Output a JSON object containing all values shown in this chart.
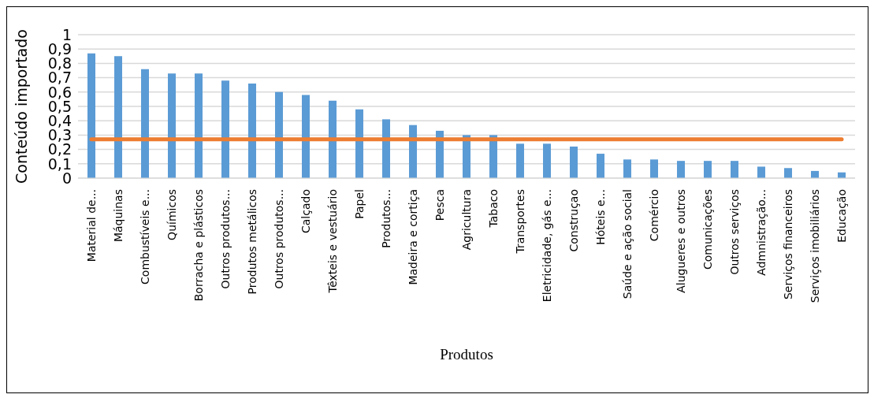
{
  "chart_data": {
    "type": "bar",
    "xlabel": "Produtos",
    "ylabel": "Conteúdo importado",
    "categories": [
      "Material de...",
      "Máquinas",
      "Combustíveis e...",
      "Químicos",
      "Borracha e plásticos",
      "Outros produtos...",
      "Produtos metálicos",
      "Outros produtos...",
      "Calçado",
      "Têxteis e vestuário",
      "Papel",
      "Produtos...",
      "Madeira e cortiça",
      "Pesca",
      "Agricultura",
      "Tabaco",
      "Transportes",
      "Eletricidade, gás e...",
      "Construçao",
      "Hóteis e...",
      "Saúde e ação social",
      "Comércio",
      "Alugueres e outros",
      "Comunicações",
      "Outros serviços",
      "Admnistração...",
      "Serviços financeiros",
      "Serviços imobiliários",
      "Educação"
    ],
    "series": [
      {
        "color": "#5b9bd5",
        "values": [
          0.87,
          0.85,
          0.76,
          0.73,
          0.73,
          0.68,
          0.66,
          0.6,
          0.58,
          0.54,
          0.48,
          0.41,
          0.37,
          0.33,
          0.3,
          0.3,
          0.24,
          0.24,
          0.22,
          0.17,
          0.13,
          0.13,
          0.12,
          0.12,
          0.12,
          0.08,
          0.07,
          0.05,
          0.04
        ]
      },
      {
        "type": "line",
        "color": "#ed7d31",
        "values": [
          0.27,
          0.27,
          0.27,
          0.27,
          0.27,
          0.27,
          0.27,
          0.27,
          0.27,
          0.27,
          0.27,
          0.27,
          0.27,
          0.27,
          0.27,
          0.27,
          0.27,
          0.27,
          0.27,
          0.27,
          0.27,
          0.27,
          0.27,
          0.27,
          0.27,
          0.27,
          0.27,
          0.27,
          0.27
        ]
      }
    ],
    "ylim": [
      0,
      1
    ],
    "yticks": [
      0,
      {
        "value": 0.1,
        "label": "0,1"
      },
      {
        "value": 0.2,
        "label": "0,2"
      },
      {
        "value": 0.3,
        "label": "0,3"
      },
      {
        "value": 0.4,
        "label": "0,4"
      },
      {
        "value": 0.5,
        "label": "0,5"
      },
      {
        "value": 0.6,
        "label": "0,6"
      },
      {
        "value": 0.7,
        "label": "0,7"
      },
      {
        "value": 0.8,
        "label": "0,8"
      },
      {
        "value": 0.9,
        "label": "0,9"
      },
      1
    ],
    "grid": "y",
    "marker": "none"
  }
}
